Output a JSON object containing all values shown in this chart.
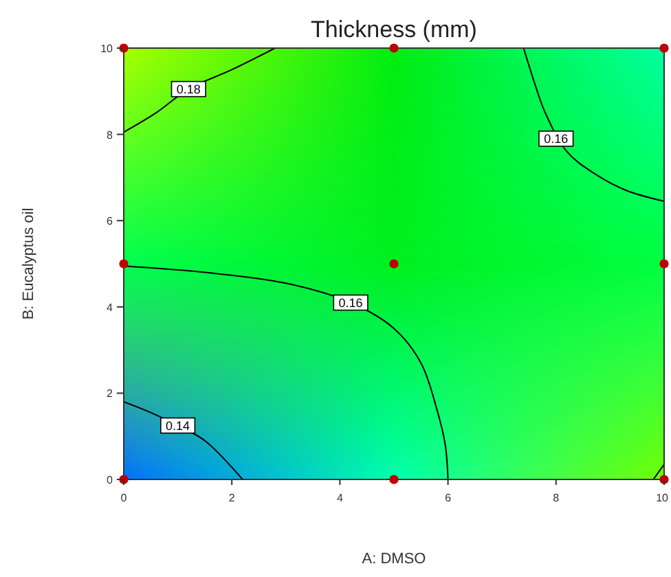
{
  "chart_data": {
    "type": "scatter",
    "title": "Thickness (mm)",
    "xlabel": "A: DMSO",
    "ylabel": "B: Eucalyptus oil",
    "xlim": [
      0,
      10
    ],
    "ylim": [
      0,
      10
    ],
    "xticks": [
      0,
      2,
      4,
      6,
      8,
      10
    ],
    "yticks": [
      0,
      2,
      4,
      6,
      8,
      10
    ],
    "grid": false,
    "series": [
      {
        "type": "line",
        "color": "#000000",
        "x": [
          0,
          0.6,
          1.2,
          2.0,
          2.8
        ],
        "values": [
          8.05,
          8.5,
          9.05,
          9.5,
          10
        ]
      },
      {
        "type": "line",
        "color": "#000000",
        "x": [
          7.4,
          7.6,
          7.8,
          8.2,
          8.7,
          9.3,
          10
        ],
        "values": [
          10,
          9.2,
          8.5,
          7.6,
          7.1,
          6.7,
          6.45
        ]
      },
      {
        "type": "line",
        "color": "#000000",
        "x": [
          0,
          1.5,
          3.0,
          4.2,
          5.0,
          5.5,
          5.8,
          5.95,
          6.0
        ],
        "values": [
          4.95,
          4.8,
          4.55,
          4.1,
          3.5,
          2.7,
          1.6,
          0.8,
          0
        ]
      },
      {
        "type": "line",
        "color": "#000000",
        "x": [
          0,
          0.5,
          1.0,
          1.5,
          2.2
        ],
        "values": [
          1.8,
          1.55,
          1.25,
          0.9,
          0
        ]
      },
      {
        "type": "line",
        "color": "#000000",
        "x": [
          9.8,
          10
        ],
        "values": [
          0,
          0.35
        ]
      },
      {
        "type": "scatter",
        "marker": "circle",
        "color": "#c00000",
        "x": [
          0,
          5,
          10,
          0,
          5,
          10,
          0,
          5,
          10
        ],
        "values": [
          0,
          0,
          0,
          5,
          5,
          5,
          10,
          10,
          10
        ]
      }
    ],
    "annotations": [
      {
        "text": "0.18",
        "x": 1.2,
        "y": 9.05
      },
      {
        "text": "0.16",
        "x": 8.0,
        "y": 7.9
      },
      {
        "text": "0.16",
        "x": 4.2,
        "y": 4.1
      },
      {
        "text": "0.14",
        "x": 1.0,
        "y": 1.25
      }
    ]
  }
}
